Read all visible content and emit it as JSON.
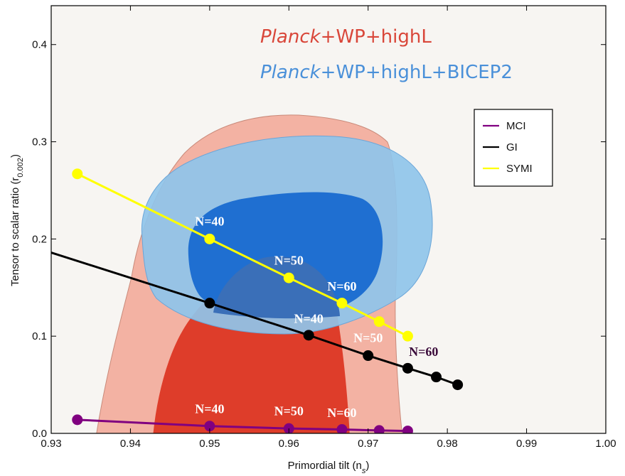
{
  "chart_data": {
    "type": "scatter",
    "xlabel": "Primordial tilt (n",
    "xlabel_sub": "s",
    "xlabel_end": ")",
    "ylabel": "Tensor to scalar ratio (r",
    "ylabel_sub": "0.002",
    "ylabel_end": ")",
    "xlim": [
      0.93,
      1.0
    ],
    "ylim": [
      0.0,
      0.44
    ],
    "xticks": [
      "0.93",
      "0.94",
      "0.95",
      "0.96",
      "0.97",
      "0.98",
      "0.99",
      "1.00"
    ],
    "yticks": [
      "0.0",
      "0.1",
      "0.2",
      "0.3",
      "0.4"
    ],
    "overlay_title_1": {
      "italic": "Planck",
      "rest": "+WP+highL",
      "color": "#d9473a"
    },
    "overlay_title_2": {
      "italic": "Planck",
      "rest": "+WP+highL+BICEP2",
      "color": "#4a90d9"
    },
    "legend_position": "top-right",
    "series": [
      {
        "name": "MCI",
        "color": "#800080",
        "x": [
          0.9333,
          0.95,
          0.96,
          0.9667,
          0.9714,
          0.975
        ],
        "y": [
          0.014,
          0.0075,
          0.005,
          0.004,
          0.003,
          0.0025
        ]
      },
      {
        "name": "GI",
        "color": "#000000",
        "x": [
          0.93,
          0.95,
          0.9625,
          0.97,
          0.975,
          0.9786,
          0.9813
        ],
        "y": [
          0.186,
          0.134,
          0.101,
          0.08,
          0.067,
          0.058,
          0.05
        ],
        "marker_start": 1
      },
      {
        "name": "SYMI",
        "color": "#ffff00",
        "x": [
          0.9333,
          0.95,
          0.96,
          0.9667,
          0.9714,
          0.975
        ],
        "y": [
          0.267,
          0.2,
          0.16,
          0.134,
          0.115,
          0.1
        ]
      }
    ],
    "annotations": [
      {
        "text": "N=40",
        "x": 0.95,
        "y": 0.205,
        "color": "#ffffff"
      },
      {
        "text": "N=50",
        "x": 0.96,
        "y": 0.165,
        "color": "#ffffff"
      },
      {
        "text": "N=60",
        "x": 0.9667,
        "y": 0.138,
        "color": "#ffffff"
      },
      {
        "text": "N=40",
        "x": 0.9625,
        "y": 0.105,
        "color": "#ffffff"
      },
      {
        "text": "N=50",
        "x": 0.97,
        "y": 0.085,
        "color": "#ffffff"
      },
      {
        "text": "N=60",
        "x": 0.977,
        "y": 0.071,
        "color": "#3a0a3a"
      },
      {
        "text": "N=40",
        "x": 0.95,
        "y": 0.012,
        "color": "#ffffff"
      },
      {
        "text": "N=50",
        "x": 0.96,
        "y": 0.01,
        "color": "#ffffff"
      },
      {
        "text": "N=60",
        "x": 0.9667,
        "y": 0.008,
        "color": "#ffffff"
      }
    ],
    "contour_colors": {
      "red_outer": "#f3b2a3",
      "red_inner": "#de3d2a",
      "blue_outer": "#8fc4ea",
      "blue_inner": "#1f6fd1",
      "overlap": "#3a6fb8"
    }
  }
}
